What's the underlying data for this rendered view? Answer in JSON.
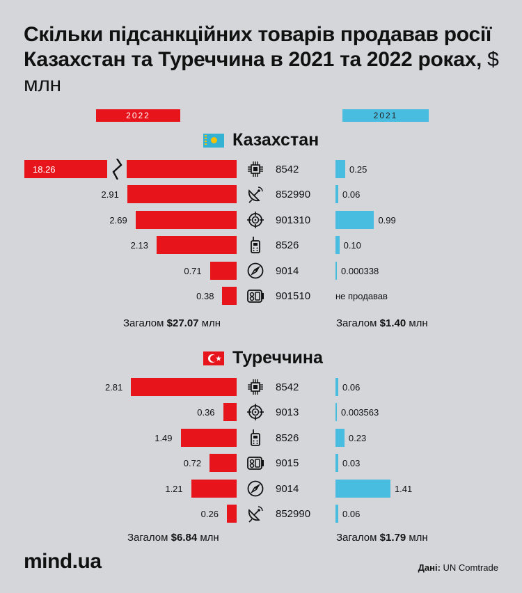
{
  "title": "Скільки підсанкційних товарів продавав росії Казахстан та Туреччина в 2021 та 2022 роках,",
  "title_unit": "$ млн",
  "colors": {
    "y2022": "#e8141c",
    "y2021": "#49bddf"
  },
  "chart_data": {
    "type": "bar",
    "unit": "$ млн",
    "years": [
      "2022",
      "2021"
    ],
    "groups": [
      {
        "country": "Казахстан",
        "flag_icon": "kazakhstan-flag-icon",
        "rows": [
          {
            "code": "8542",
            "icon": "chip-icon",
            "v2022": 18.26,
            "v2022_label": "18.26",
            "v2021": 0.25,
            "v2021_label": "0.25",
            "broken_axis": true
          },
          {
            "code": "852990",
            "icon": "satellite-dish-icon",
            "v2022": 2.91,
            "v2022_label": "2.91",
            "v2021": 0.06,
            "v2021_label": "0.06"
          },
          {
            "code": "901310",
            "icon": "crosshair-icon",
            "v2022": 2.69,
            "v2022_label": "2.69",
            "v2021": 0.99,
            "v2021_label": "0.99"
          },
          {
            "code": "8526",
            "icon": "radio-icon",
            "v2022": 2.13,
            "v2022_label": "2.13",
            "v2021": 0.1,
            "v2021_label": "0.10"
          },
          {
            "code": "9014",
            "icon": "compass-icon",
            "v2022": 0.71,
            "v2022_label": "0.71",
            "v2021": 0.000338,
            "v2021_label": "0.000338"
          },
          {
            "code": "901510",
            "icon": "rangefinder-icon",
            "v2022": 0.38,
            "v2022_label": "0.38",
            "v2021": null,
            "v2021_label": "не продавав"
          }
        ],
        "total_label": "Загалом",
        "total_2022": "$27.07",
        "total_2021": "$1.40",
        "total_unit": "млн"
      },
      {
        "country": "Туреччина",
        "flag_icon": "turkey-flag-icon",
        "rows": [
          {
            "code": "8542",
            "icon": "chip-icon",
            "v2022": 2.81,
            "v2022_label": "2.81",
            "v2021": 0.06,
            "v2021_label": "0.06"
          },
          {
            "code": "9013",
            "icon": "crosshair-icon",
            "v2022": 0.36,
            "v2022_label": "0.36",
            "v2021": 0.003563,
            "v2021_label": "0.003563"
          },
          {
            "code": "8526",
            "icon": "radio-icon",
            "v2022": 1.49,
            "v2022_label": "1.49",
            "v2021": 0.23,
            "v2021_label": "0.23"
          },
          {
            "code": "9015",
            "icon": "rangefinder-icon",
            "v2022": 0.72,
            "v2022_label": "0.72",
            "v2021": 0.03,
            "v2021_label": "0.03"
          },
          {
            "code": "9014",
            "icon": "compass-icon",
            "v2022": 1.21,
            "v2022_label": "1.21",
            "v2021": 1.41,
            "v2021_label": "1.41"
          },
          {
            "code": "852990",
            "icon": "satellite-dish-icon",
            "v2022": 0.26,
            "v2022_label": "0.26",
            "v2021": 0.06,
            "v2021_label": "0.06"
          }
        ],
        "total_label": "Загалом",
        "total_2022": "$6.84",
        "total_2021": "$1.79",
        "total_unit": "млн"
      }
    ]
  },
  "footer": {
    "logo": "mind.ua",
    "source_label": "Дані:",
    "source_text": "UN Comtrade"
  }
}
